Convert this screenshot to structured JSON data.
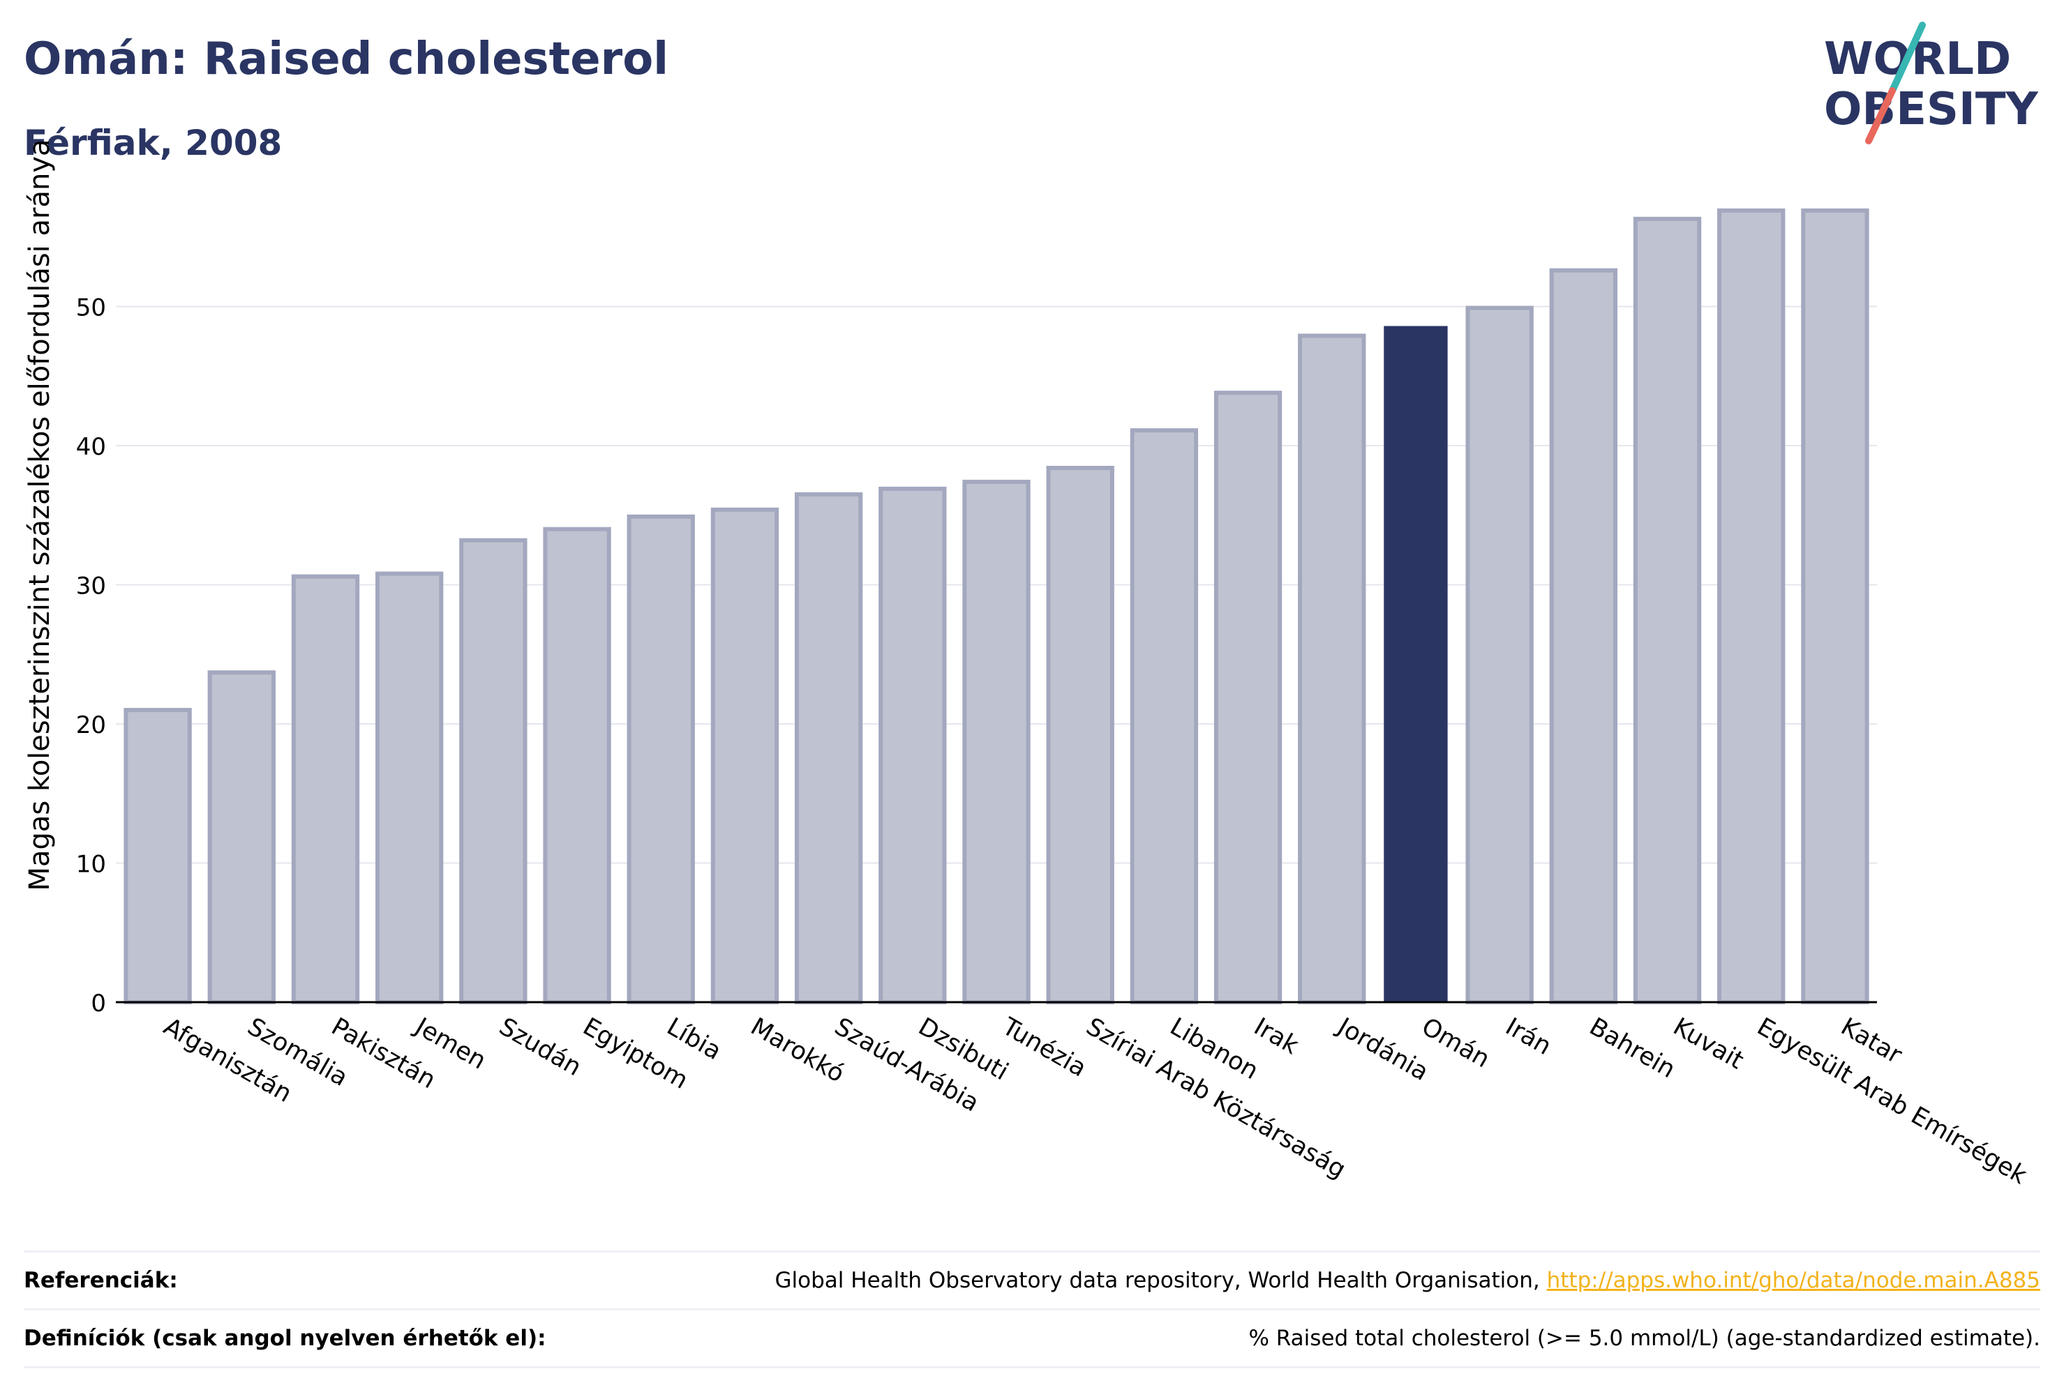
{
  "header": {
    "title": "Omán: Raised cholesterol",
    "subtitle": "Férfiak, 2008"
  },
  "logo": {
    "line1": "WORLD",
    "line2": "OBESITY",
    "colors": {
      "text": "#2a3563",
      "slash_top": "#38b6b2",
      "slash_bottom": "#e8685c"
    }
  },
  "chart_data": {
    "type": "bar",
    "ylabel": "Magas koleszterinszint százalékos előfordulási aránya",
    "xlabel": "",
    "ylim": [
      0,
      59
    ],
    "yticks": [
      0,
      10,
      20,
      30,
      40,
      50
    ],
    "grid": true,
    "highlight": "Omán",
    "colors": {
      "bar": "#bfc2d0",
      "bar_edge": "#a3a8bf",
      "highlight": "#2a3563"
    },
    "categories": [
      "Afganisztán",
      "Szomália",
      "Pakisztán",
      "Jemen",
      "Szudán",
      "Egyiptom",
      "Líbia",
      "Marokkó",
      "Szaúd-Arábia",
      "Dzsibuti",
      "Tunézia",
      "Szíriai Arab Köztársaság",
      "Libanon",
      "Irak",
      "Jordánia",
      "Omán",
      "Irán",
      "Bahrein",
      "Kuvait",
      "Egyesült Arab Emírségek",
      "Katar"
    ],
    "values": [
      21.0,
      23.7,
      30.6,
      30.8,
      33.2,
      34.0,
      34.9,
      35.4,
      36.5,
      36.9,
      37.4,
      38.4,
      41.1,
      43.8,
      47.9,
      48.6,
      49.9,
      52.6,
      56.3,
      56.9,
      56.9
    ]
  },
  "footer": {
    "references_label": "Referenciák:",
    "references_text": "Global Health Observatory data repository, World Health Organisation, ",
    "references_link": "http://apps.who.int/gho/data/node.main.A885",
    "definitions_label": "Definíciók (csak angol nyelven érhetők el):",
    "definitions_text": "% Raised total cholesterol (>= 5.0 mmol/L) (age-standardized estimate)."
  }
}
